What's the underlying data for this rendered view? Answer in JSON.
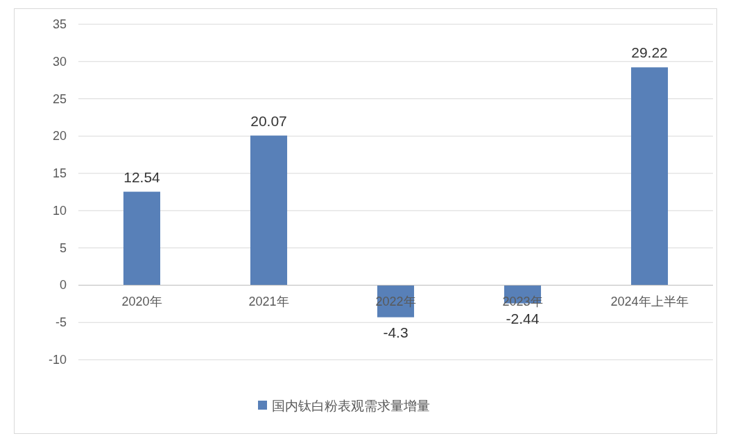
{
  "chart_data": {
    "type": "bar",
    "categories": [
      "2020年",
      "2021年",
      "2022年",
      "2023年",
      "2024年上半年"
    ],
    "series": [
      {
        "name": "国内钛白粉表观需求量增量",
        "color": "#5880b8",
        "values": [
          12.54,
          20.07,
          -4.3,
          -2.44,
          29.22
        ]
      }
    ],
    "ylim": [
      -10,
      35
    ],
    "yticks": [
      -10,
      -5,
      0,
      5,
      10,
      15,
      20,
      25,
      30,
      35
    ],
    "grid": "y",
    "legend": "bottom",
    "data_labels": true
  }
}
